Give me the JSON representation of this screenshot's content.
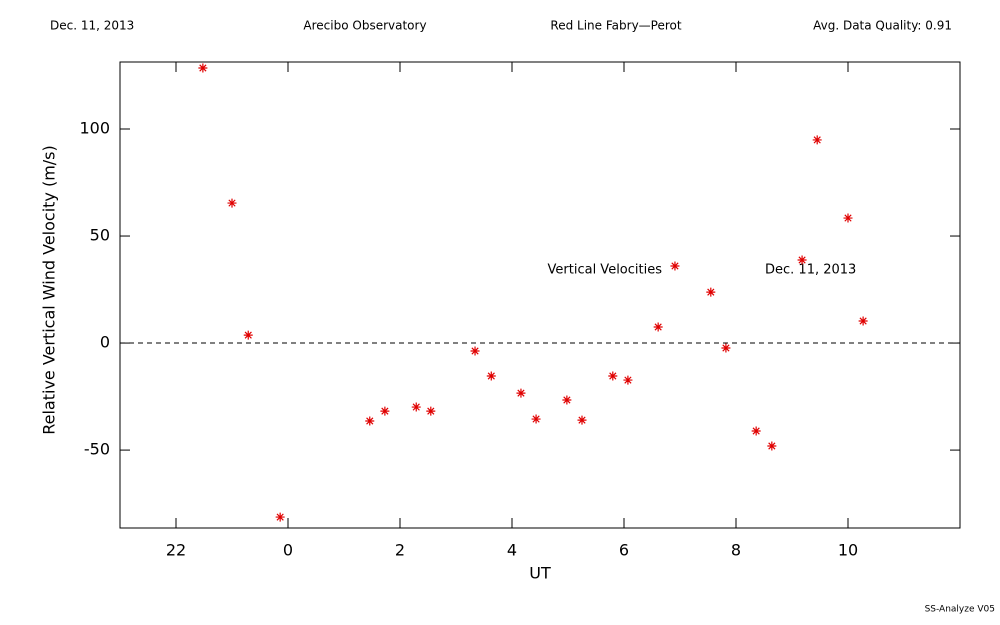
{
  "header": {
    "date": "Dec. 11, 2013",
    "site": "Arecibo Observatory",
    "instrument": "Red Line Fabry—Perot",
    "quality": "Avg. Data Quality: 0.91"
  },
  "footer": "SS-Analyze V05",
  "chart_data": {
    "type": "scatter",
    "xlabel": "UT",
    "ylabel": "Relative Vertical Wind Velocity (m/s)",
    "annotations": [
      "Vertical Velocities",
      "Dec. 11, 2013"
    ],
    "xlim": [
      21,
      36
    ],
    "ylim": [
      -86.4,
      131.3
    ],
    "xticks": [
      22,
      {
        "value": 24,
        "label": "0"
      },
      {
        "value": 26,
        "label": "2"
      },
      {
        "value": 28,
        "label": "4"
      },
      {
        "value": 30,
        "label": "6"
      },
      {
        "value": 32,
        "label": "8"
      },
      {
        "value": 34,
        "label": "10"
      }
    ],
    "yticks": [
      -50,
      0,
      50,
      100
    ],
    "reference_line": 0,
    "color": "#e00000",
    "x": [
      22.48,
      23.0,
      23.29,
      23.86,
      25.46,
      25.73,
      26.29,
      26.55,
      27.34,
      27.63,
      28.16,
      28.43,
      28.98,
      29.25,
      29.8,
      30.07,
      30.61,
      30.91,
      31.55,
      31.82,
      32.36,
      32.64,
      33.18,
      33.45,
      34.0,
      34.27
    ],
    "values": [
      128.5,
      65.4,
      3.7,
      -81.3,
      -36.4,
      -31.8,
      -29.9,
      -31.8,
      -3.7,
      -15.4,
      -23.4,
      -35.5,
      -26.6,
      -36.0,
      -15.4,
      -17.3,
      7.5,
      36.0,
      23.8,
      -2.3,
      -41.1,
      -48.1,
      38.8,
      94.9,
      58.4,
      10.3
    ]
  }
}
